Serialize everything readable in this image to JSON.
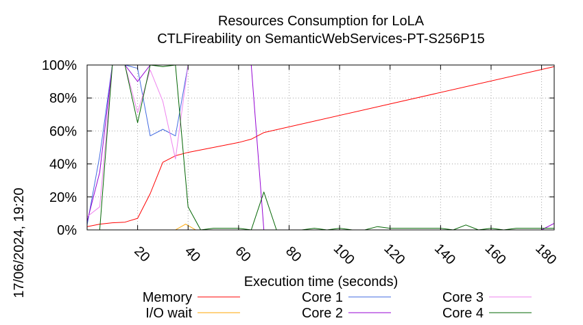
{
  "chart_data": {
    "type": "line",
    "title": "Resources Consumption for LoLA",
    "subtitle": "CTLFireability on SemanticWebServices-PT-S256P15",
    "xlabel": "Execution time (seconds)",
    "ylabel": "",
    "side_label": "17/06/2024, 19:20",
    "xlim": [
      0,
      185
    ],
    "ylim": [
      0,
      100
    ],
    "x_ticks": [
      20,
      40,
      60,
      80,
      100,
      120,
      140,
      160,
      180
    ],
    "x_tick_labels": [
      "20",
      "40",
      "60",
      "80",
      "100",
      "120",
      "140",
      "160",
      "180"
    ],
    "y_ticks": [
      0,
      20,
      40,
      60,
      80,
      100
    ],
    "y_tick_labels": [
      "0%",
      "20%",
      "40%",
      "60%",
      "80%",
      "100%"
    ],
    "grid": true,
    "legend_position": "bottom",
    "series": [
      {
        "name": "Memory",
        "color": "#ff0000",
        "points": [
          [
            0,
            2
          ],
          [
            5,
            3.5
          ],
          [
            10,
            4.3
          ],
          [
            15,
            4.7
          ],
          [
            20,
            7
          ],
          [
            25,
            22
          ],
          [
            30,
            41
          ],
          [
            35,
            45
          ],
          [
            40,
            47
          ],
          [
            45,
            48.5
          ],
          [
            50,
            50
          ],
          [
            55,
            51.5
          ],
          [
            60,
            53
          ],
          [
            65,
            55
          ],
          [
            70,
            59
          ],
          [
            185,
            99
          ]
        ]
      },
      {
        "name": "I/O wait",
        "color": "#ffa500",
        "points": [
          [
            0,
            0
          ],
          [
            5,
            0
          ],
          [
            10,
            0
          ],
          [
            15,
            0
          ],
          [
            20,
            0
          ],
          [
            25,
            0
          ],
          [
            30,
            0
          ],
          [
            35,
            0
          ],
          [
            39,
            3.5
          ],
          [
            43,
            0
          ],
          [
            50,
            0
          ],
          [
            185,
            0
          ]
        ]
      },
      {
        "name": "Core 1",
        "color": "#4169e1",
        "points": [
          [
            0,
            3
          ],
          [
            5,
            45
          ],
          [
            10,
            100
          ],
          [
            15,
            100
          ],
          [
            20,
            98
          ],
          [
            25,
            57
          ],
          [
            30,
            61
          ],
          [
            35,
            57
          ],
          [
            40,
            100
          ],
          [
            45,
            100
          ],
          [
            185,
            100
          ]
        ]
      },
      {
        "name": "Core 2",
        "color": "#9400d3",
        "points": [
          [
            0,
            5
          ],
          [
            5,
            35
          ],
          [
            10,
            100
          ],
          [
            15,
            100
          ],
          [
            20,
            90
          ],
          [
            25,
            100
          ],
          [
            30,
            100
          ],
          [
            35,
            100
          ],
          [
            40,
            100
          ],
          [
            65,
            100
          ],
          [
            70,
            0
          ],
          [
            75,
            0
          ],
          [
            80,
            0
          ],
          [
            90,
            0
          ],
          [
            100,
            0
          ],
          [
            180,
            0
          ],
          [
            185,
            4
          ]
        ]
      },
      {
        "name": "Core 3",
        "color": "#ee82ee",
        "points": [
          [
            0,
            8
          ],
          [
            5,
            14
          ],
          [
            10,
            100
          ],
          [
            15,
            100
          ],
          [
            20,
            71
          ],
          [
            25,
            97
          ],
          [
            30,
            78
          ],
          [
            35,
            43
          ],
          [
            40,
            100
          ],
          [
            45,
            100
          ],
          [
            185,
            100
          ]
        ]
      },
      {
        "name": "Core 4",
        "color": "#006400",
        "points": [
          [
            0,
            0
          ],
          [
            5,
            0
          ],
          [
            10,
            100
          ],
          [
            15,
            100
          ],
          [
            20,
            65
          ],
          [
            25,
            100
          ],
          [
            30,
            99
          ],
          [
            35,
            100
          ],
          [
            40,
            14
          ],
          [
            45,
            0
          ],
          [
            50,
            1
          ],
          [
            55,
            1
          ],
          [
            60,
            1
          ],
          [
            65,
            0
          ],
          [
            70,
            23
          ],
          [
            75,
            0
          ],
          [
            80,
            0
          ],
          [
            85,
            0
          ],
          [
            90,
            1
          ],
          [
            95,
            0
          ],
          [
            100,
            1
          ],
          [
            105,
            0
          ],
          [
            110,
            0
          ],
          [
            115,
            2
          ],
          [
            120,
            1
          ],
          [
            125,
            1
          ],
          [
            130,
            1
          ],
          [
            135,
            1
          ],
          [
            140,
            1
          ],
          [
            145,
            0
          ],
          [
            150,
            3
          ],
          [
            155,
            0
          ],
          [
            160,
            1
          ],
          [
            165,
            0
          ],
          [
            170,
            1
          ],
          [
            175,
            1
          ],
          [
            180,
            1
          ],
          [
            185,
            1
          ]
        ]
      }
    ]
  }
}
